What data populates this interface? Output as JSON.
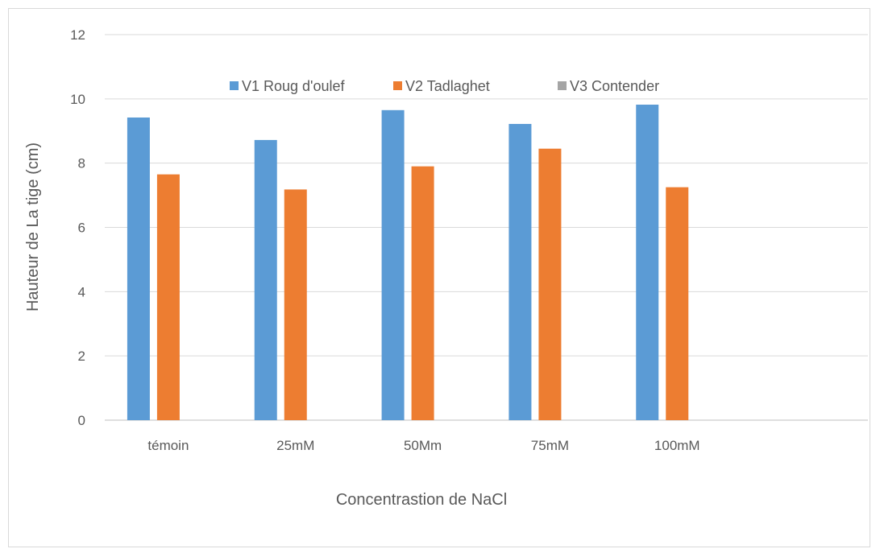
{
  "chart_data": {
    "type": "bar",
    "categories": [
      "témoin",
      "25mM",
      "50Mm",
      "75mM",
      "100mM",
      ""
    ],
    "series": [
      {
        "name": "V1 Roug d'oulef",
        "color": "#5b9bd5",
        "values": [
          9.42,
          8.72,
          9.65,
          9.22,
          9.82,
          null
        ]
      },
      {
        "name": "V2 Tadlaghet",
        "color": "#ed7d31",
        "values": [
          7.65,
          7.18,
          7.9,
          8.45,
          7.25,
          null
        ]
      },
      {
        "name": "V3 Contender",
        "color": "#a5a5a5",
        "values": [
          null,
          null,
          null,
          null,
          null,
          null
        ]
      }
    ],
    "title": "",
    "xlabel": "Concentrastion de NaCl",
    "ylabel": "Hauteur de La tige (cm)",
    "ylim": [
      0,
      12
    ],
    "yticks": [
      "0",
      "2",
      "4",
      "6",
      "8",
      "10",
      "12"
    ],
    "grid": true,
    "legend_position": "top"
  }
}
